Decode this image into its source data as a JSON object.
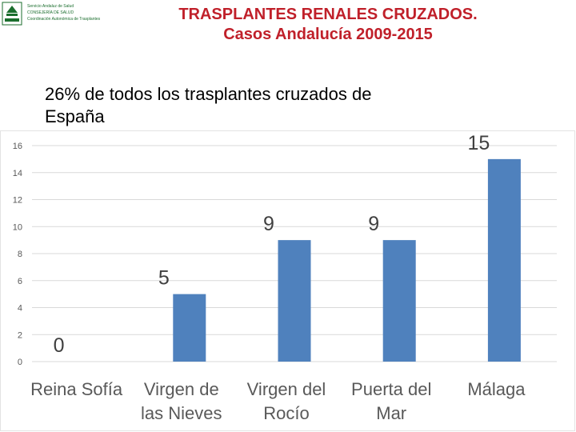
{
  "header": {
    "title_line1": "TRASPLANTES RENALES CRUZADOS.",
    "title_line2": "Casos Andalucía 2009-2015"
  },
  "logo": {
    "lines": [
      "Servicio Andaluz de Salud",
      "CONSEJERÍA DE SALUD",
      "Coordinación Autonómica de Trasplantes"
    ]
  },
  "subtitle": {
    "line1": "26% de todos los trasplantes cruzados de",
    "line2": "España"
  },
  "chart_data": {
    "type": "bar",
    "categories": [
      [
        "Reina Sofía"
      ],
      [
        "Virgen de",
        "las Nieves"
      ],
      [
        "Virgen del",
        "Rocío"
      ],
      [
        "Puerta del",
        "Mar"
      ],
      [
        "Málaga"
      ]
    ],
    "values": [
      0,
      5,
      9,
      9,
      15
    ],
    "data_labels": [
      "0",
      "5",
      "9",
      "9",
      "15"
    ],
    "ylim": [
      0,
      16
    ],
    "yticks": [
      0,
      2,
      4,
      6,
      8,
      10,
      12,
      14,
      16
    ],
    "grid": true,
    "bar_color": "#4f81bd",
    "title": "",
    "xlabel": "",
    "ylabel": ""
  }
}
